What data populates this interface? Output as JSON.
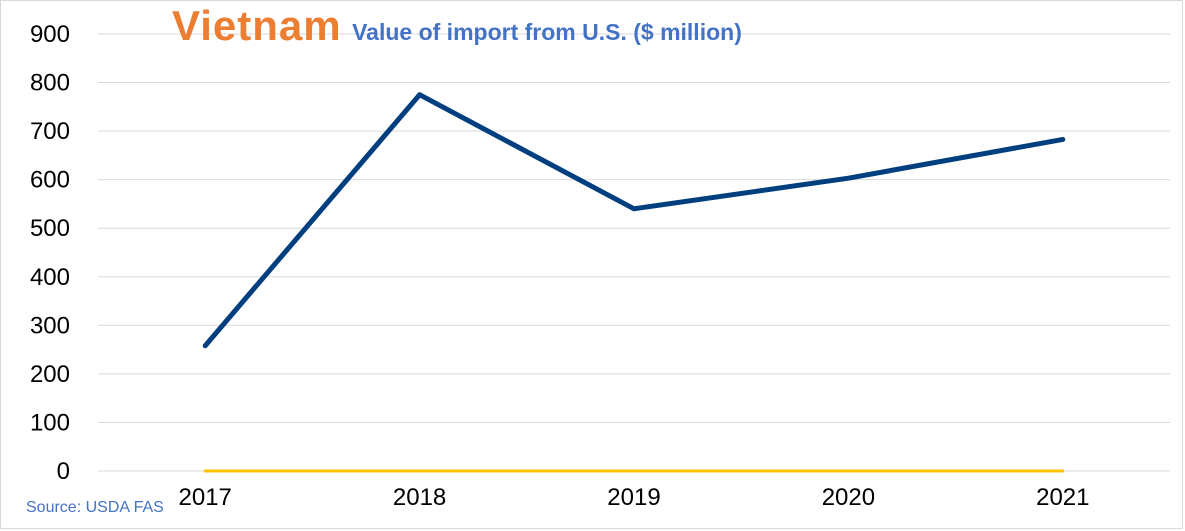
{
  "chart_data": {
    "type": "line",
    "title": "Vietnam",
    "subtitle": "Value of import from U.S. ($ million)",
    "source": "Source: USDA FAS",
    "categories": [
      "2017",
      "2018",
      "2019",
      "2020",
      "2021"
    ],
    "series": [
      {
        "values": [
          258,
          775,
          540,
          603,
          683
        ],
        "color": "#003F7F"
      },
      {
        "values": [
          0,
          0,
          0,
          0,
          0
        ],
        "color": "#FFC000"
      }
    ],
    "ylim": [
      0,
      900
    ],
    "yticks": [
      "0",
      "100",
      "200",
      "300",
      "400",
      "500",
      "600",
      "700",
      "800",
      "900"
    ],
    "grid": true,
    "legend": "none"
  }
}
